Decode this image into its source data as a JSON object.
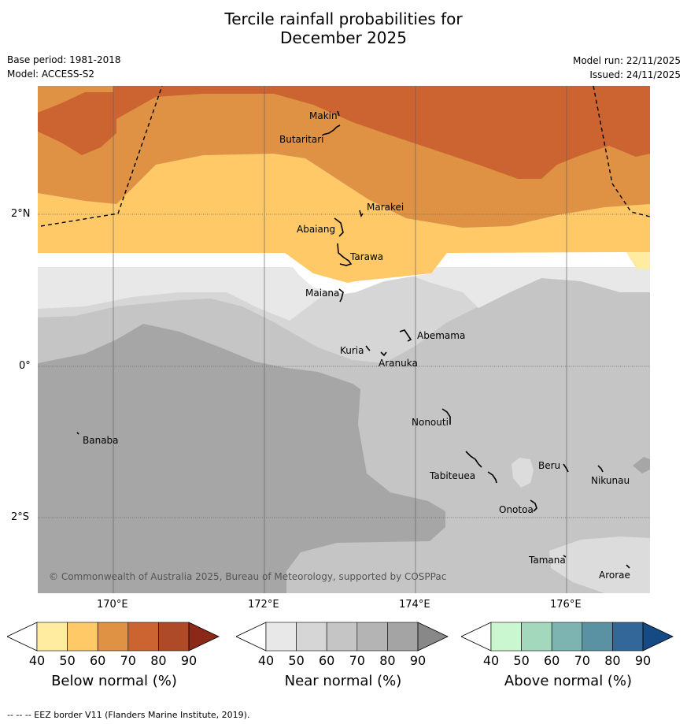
{
  "title_line1": "Tercile rainfall probabilities for",
  "title_line2": "December 2025",
  "base_period": "Base period: 1981-2018",
  "model": "Model: ACCESS-S2",
  "model_run": "Model run: 22/11/2025",
  "issued": "Issued: 24/11/2025",
  "copyright": "© Commonwealth of Australia 2025, Bureau of Meteorology, supported by COSPPac",
  "footer": "--  --  -- EEZ border V11 (Flanders Marine Institute, 2019).",
  "lat_labels": [
    "2°N",
    "0°",
    "2°S"
  ],
  "lon_labels": [
    "170°E",
    "172°E",
    "174°E",
    "176°E"
  ],
  "places": [
    "Makin",
    "Butaritari",
    "Marakei",
    "Abaiang",
    "Tarawa",
    "Maiana",
    "Abemama",
    "Kuria",
    "Aranuka",
    "Nonouti",
    "Banaba",
    "Tabiteuea",
    "Beru",
    "Nikunau",
    "Onotoa",
    "Tamana",
    "Arorae"
  ],
  "colorbars": [
    {
      "label": "Below normal (%)",
      "ticks": [
        "40",
        "50",
        "60",
        "70",
        "80",
        "90"
      ],
      "colors": [
        "#ffffff",
        "#ffeca0",
        "#fec966",
        "#e09244",
        "#cb6430",
        "#ae4a28",
        "#8b2817"
      ]
    },
    {
      "label": "Near normal (%)",
      "ticks": [
        "40",
        "50",
        "60",
        "70",
        "80",
        "90"
      ],
      "colors": [
        "#ffffff",
        "#e8e8e8",
        "#d6d6d6",
        "#c5c5c5",
        "#b4b4b4",
        "#a4a4a4",
        "#888888"
      ]
    },
    {
      "label": "Above normal (%)",
      "ticks": [
        "40",
        "50",
        "60",
        "70",
        "80",
        "90"
      ],
      "colors": [
        "#ffffff",
        "#caf7cf",
        "#a3d8bc",
        "#7db3b0",
        "#5a91a3",
        "#336699",
        "#154a84"
      ]
    }
  ]
}
